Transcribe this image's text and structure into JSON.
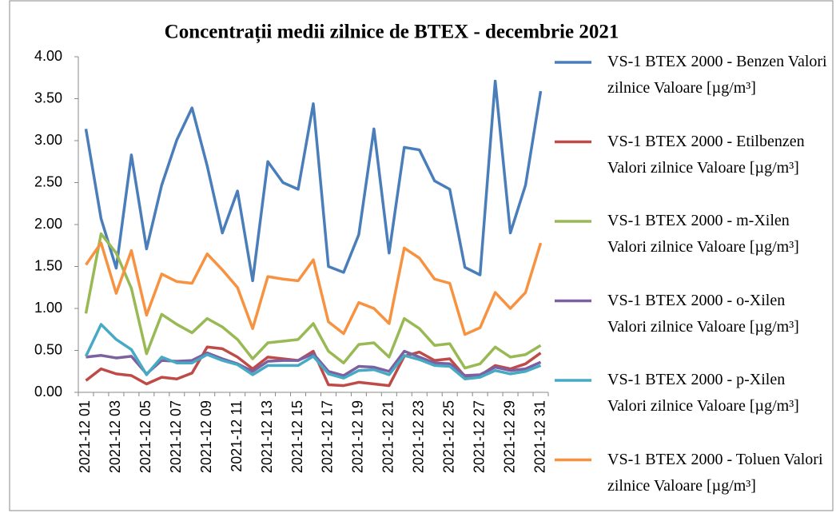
{
  "chart_data": {
    "type": "line",
    "title": "Concentrații  medii zilnice de BTEX - decembrie 2021",
    "categories": [
      "2021-12 01",
      null,
      "2021-12 03",
      null,
      "2021-12 05",
      null,
      "2021-12 07",
      null,
      "2021-12 09",
      null,
      "2021-12 11",
      null,
      "2021-12 13",
      null,
      "2021-12 15",
      null,
      "2021-12 17",
      null,
      "2021-12 19",
      null,
      "2021-12 21",
      null,
      "2021-12 23",
      null,
      "2021-12 25",
      null,
      "2021-12 27",
      null,
      "2021-12 29",
      null,
      "2021-12 31"
    ],
    "series": [
      {
        "name": "VS-1 BTEX 2000 - Benzen Valori zilnice Valoare [µg/m³]",
        "color": "#4a7ebb",
        "values": [
          3.14,
          2.07,
          1.48,
          2.83,
          1.71,
          2.47,
          3.01,
          3.39,
          2.7,
          1.9,
          2.4,
          1.33,
          2.75,
          2.5,
          2.42,
          3.44,
          1.5,
          1.43,
          1.88,
          3.14,
          1.66,
          2.92,
          2.89,
          2.52,
          2.42,
          1.49,
          1.4,
          3.71,
          1.9,
          2.47,
          3.59
        ]
      },
      {
        "name": "VS-1 BTEX 2000 - Etilbenzen Valori zilnice Valoare [µg/m³]",
        "color": "#be4b48",
        "values": [
          0.14,
          0.28,
          0.22,
          0.2,
          0.1,
          0.18,
          0.16,
          0.23,
          0.54,
          0.52,
          0.42,
          0.28,
          0.42,
          0.4,
          0.38,
          0.49,
          0.09,
          0.08,
          0.12,
          0.1,
          0.08,
          0.43,
          0.48,
          0.38,
          0.4,
          0.19,
          0.2,
          0.32,
          0.28,
          0.34,
          0.47
        ]
      },
      {
        "name": "VS-1 BTEX 2000 - m-Xilen Valori zilnice Valoare [µg/m³]",
        "color": "#98b954",
        "values": [
          0.94,
          1.89,
          1.66,
          1.24,
          0.46,
          0.93,
          0.81,
          0.71,
          0.88,
          0.78,
          0.63,
          0.4,
          0.59,
          0.61,
          0.63,
          0.82,
          0.49,
          0.35,
          0.57,
          0.59,
          0.42,
          0.88,
          0.76,
          0.56,
          0.58,
          0.29,
          0.34,
          0.54,
          0.42,
          0.45,
          0.56
        ]
      },
      {
        "name": "VS-1 BTEX 2000 - o-Xilen Valori zilnice Valoare [µg/m³]",
        "color": "#7d60a0",
        "values": [
          0.42,
          0.44,
          0.41,
          0.43,
          0.22,
          0.38,
          0.37,
          0.38,
          0.47,
          0.4,
          0.34,
          0.25,
          0.37,
          0.38,
          0.38,
          0.46,
          0.25,
          0.2,
          0.31,
          0.3,
          0.25,
          0.49,
          0.42,
          0.35,
          0.34,
          0.2,
          0.21,
          0.3,
          0.26,
          0.28,
          0.36
        ]
      },
      {
        "name": "VS-1 BTEX 2000 - p-Xilen Valori zilnice Valoare [µg/m³]",
        "color": "#46aac5",
        "values": [
          0.43,
          0.81,
          0.63,
          0.51,
          0.21,
          0.42,
          0.35,
          0.35,
          0.45,
          0.38,
          0.33,
          0.21,
          0.32,
          0.32,
          0.32,
          0.43,
          0.22,
          0.17,
          0.26,
          0.27,
          0.21,
          0.44,
          0.39,
          0.32,
          0.31,
          0.16,
          0.18,
          0.26,
          0.22,
          0.25,
          0.32
        ]
      },
      {
        "name": "VS-1 BTEX 2000 - Toluen Valori zilnice Valoare [µg/m³]",
        "color": "#f69240",
        "values": [
          1.52,
          1.78,
          1.18,
          1.69,
          0.92,
          1.41,
          1.32,
          1.3,
          1.65,
          1.46,
          1.25,
          0.76,
          1.38,
          1.35,
          1.33,
          1.58,
          0.84,
          0.7,
          1.07,
          1.0,
          0.82,
          1.72,
          1.6,
          1.35,
          1.3,
          0.69,
          0.77,
          1.19,
          1.0,
          1.19,
          1.78
        ]
      }
    ],
    "ylim": [
      0,
      4
    ],
    "yticks": [
      {
        "value": 0,
        "label": "0.00"
      },
      {
        "value": 0.5,
        "label": "0.50"
      },
      {
        "value": 1,
        "label": "1.00"
      },
      {
        "value": 1.5,
        "label": "1.50"
      },
      {
        "value": 2,
        "label": "2.00"
      },
      {
        "value": 2.5,
        "label": "2.50"
      },
      {
        "value": 3,
        "label": "3.00"
      },
      {
        "value": 3.5,
        "label": "3.50"
      },
      {
        "value": 4,
        "label": "4.00"
      }
    ],
    "grid": false,
    "legend": "right"
  }
}
